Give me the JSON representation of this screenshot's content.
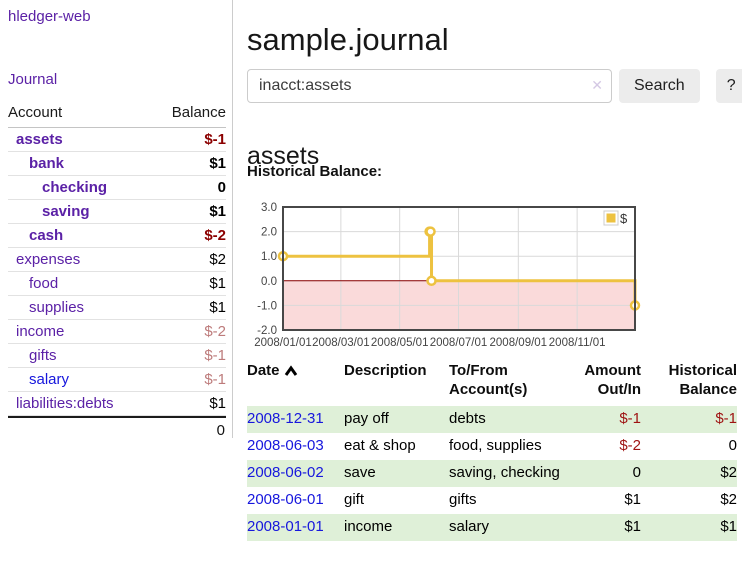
{
  "app": {
    "brand": "hledger-web"
  },
  "nav": {
    "journal": "Journal"
  },
  "sidebar": {
    "accounts_header": {
      "account": "Account",
      "balance": "Balance"
    },
    "accounts": [
      {
        "name": "assets",
        "balance": "$-1",
        "indent": 1,
        "bold": true,
        "balance_tone": "negative"
      },
      {
        "name": "bank",
        "balance": "$1",
        "indent": 2,
        "bold": true,
        "balance_tone": "positive"
      },
      {
        "name": "checking",
        "balance": "0",
        "indent": 3,
        "bold": true,
        "balance_tone": "positive"
      },
      {
        "name": "saving",
        "balance": "$1",
        "indent": 3,
        "bold": true,
        "balance_tone": "positive"
      },
      {
        "name": "cash",
        "balance": "$-2",
        "indent": 2,
        "bold": true,
        "balance_tone": "negative"
      },
      {
        "name": "expenses",
        "balance": "$2",
        "indent": 1,
        "bold": false,
        "balance_tone": "positive"
      },
      {
        "name": "food",
        "balance": "$1",
        "indent": 2,
        "bold": false,
        "balance_tone": "positive"
      },
      {
        "name": "supplies",
        "balance": "$1",
        "indent": 2,
        "bold": false,
        "balance_tone": "positive"
      },
      {
        "name": "income",
        "balance": "$-2",
        "indent": 1,
        "bold": false,
        "balance_tone": "negative-muted"
      },
      {
        "name": "gifts",
        "balance": "$-1",
        "indent": 2,
        "bold": false,
        "balance_tone": "negative-muted"
      },
      {
        "name": "salary",
        "balance": "$-1",
        "indent": 2,
        "bold": false,
        "balance_tone": "negative-muted",
        "link_tone": "blue"
      },
      {
        "name": "liabilities:debts",
        "balance": "$1",
        "indent": 1,
        "bold": false,
        "balance_tone": "positive"
      }
    ],
    "total": "0"
  },
  "header": {
    "title": "sample.journal"
  },
  "search": {
    "value": "inacct:assets",
    "clear_icon": "✕",
    "button": "Search",
    "help_button": "?"
  },
  "account_page": {
    "heading": "assets",
    "chart_label": "Historical Balance:"
  },
  "chart_data": {
    "type": "line",
    "step": true,
    "title": "Historical Balance:",
    "series": [
      {
        "name": "$",
        "color": "#edc240",
        "points": [
          [
            "2008-01-01",
            1
          ],
          [
            "2008-06-01",
            2
          ],
          [
            "2008-06-02",
            2
          ],
          [
            "2008-06-03",
            0
          ],
          [
            "2008-12-31",
            -1
          ]
        ]
      }
    ],
    "x_ticks": [
      "2008/01/01",
      "2008/03/01",
      "2008/05/01",
      "2008/07/01",
      "2008/09/01",
      "2008/11/01"
    ],
    "y_ticks": [
      3.0,
      2.0,
      1.0,
      0.0,
      -1.0,
      -2.0
    ],
    "xlim": [
      "2008-01-01",
      "2008-12-31"
    ],
    "ylim": [
      -2,
      3
    ],
    "grid": true,
    "negative_region_color": "#fadada",
    "zero_line_color": "#8b0000",
    "border_color": "#474747",
    "legend": {
      "label": "$",
      "position": "top-right"
    }
  },
  "register": {
    "headers": [
      {
        "lines": [
          "Date"
        ],
        "sort": "asc",
        "align": "left"
      },
      {
        "lines": [
          "Description"
        ],
        "align": "left"
      },
      {
        "lines": [
          "To/From",
          "Account(s)"
        ],
        "align": "left"
      },
      {
        "lines": [
          "Amount",
          "Out/In"
        ],
        "align": "right"
      },
      {
        "lines": [
          "Historical",
          "Balance"
        ],
        "align": "right"
      }
    ],
    "rows": [
      {
        "date": "2008-12-31",
        "description": "pay off",
        "accounts": "debts",
        "amount": "$-1",
        "amount_tone": "negative",
        "balance": "$-1",
        "balance_tone": "negative"
      },
      {
        "date": "2008-06-03",
        "description": "eat & shop",
        "accounts": "food, supplies",
        "amount": "$-2",
        "amount_tone": "negative",
        "balance": "0",
        "balance_tone": "positive"
      },
      {
        "date": "2008-06-02",
        "description": "save",
        "accounts": "saving, checking",
        "amount": "0",
        "amount_tone": "positive",
        "balance": "$2",
        "balance_tone": "positive"
      },
      {
        "date": "2008-06-01",
        "description": "gift",
        "accounts": "gifts",
        "amount": "$1",
        "amount_tone": "positive",
        "balance": "$2",
        "balance_tone": "positive"
      },
      {
        "date": "2008-01-01",
        "description": "income",
        "accounts": "salary",
        "amount": "$1",
        "amount_tone": "positive",
        "balance": "$1",
        "balance_tone": "positive"
      }
    ]
  },
  "colors": {
    "link_purple": "#5b21a6",
    "link_blue": "#1717dd",
    "negative": "#9e1212",
    "negative_bold": "#8b0000",
    "negative_muted": "#bd7b7b",
    "row_green": "#dff0d8",
    "series_gold": "#edc240"
  }
}
